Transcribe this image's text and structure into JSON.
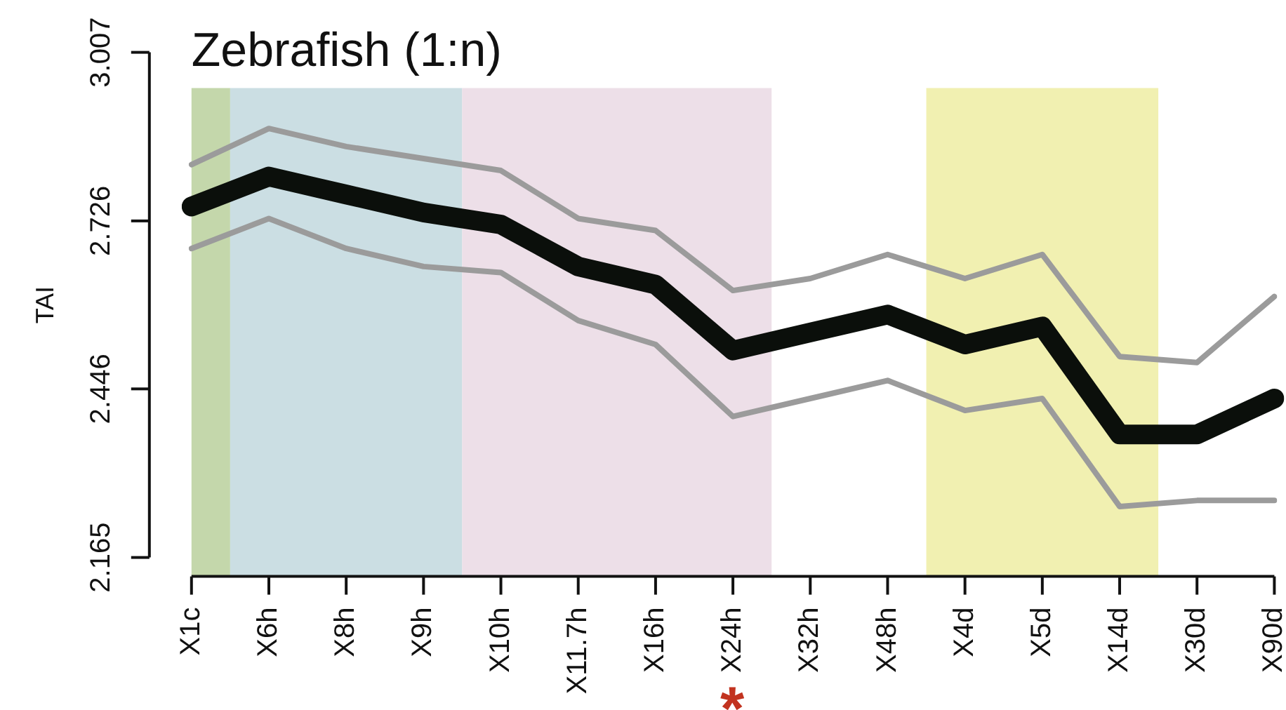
{
  "chart_data": {
    "type": "line",
    "title": "Zebrafish (1:n)",
    "ylabel": "TAI",
    "categories": [
      "X1c",
      "X6h",
      "X8h",
      "X9h",
      "X10h",
      "X11.7h",
      "X16h",
      "X24h",
      "X32h",
      "X48h",
      "X4d",
      "X5d",
      "X14d",
      "X30d",
      "X90d"
    ],
    "series": [
      {
        "color": "#0b0f0b",
        "values": [
          2.75,
          2.8,
          2.77,
          2.74,
          2.72,
          2.65,
          2.62,
          2.51,
          2.54,
          2.57,
          2.52,
          2.55,
          2.37,
          2.37,
          2.43
        ]
      },
      {
        "color": "#9b9b9b",
        "values": [
          2.82,
          2.88,
          2.85,
          2.83,
          2.81,
          2.73,
          2.71,
          2.61,
          2.63,
          2.67,
          2.63,
          2.67,
          2.5,
          2.49,
          2.6
        ]
      },
      {
        "color": "#9b9b9b",
        "values": [
          2.68,
          2.73,
          2.68,
          2.65,
          2.64,
          2.56,
          2.52,
          2.4,
          2.43,
          2.46,
          2.41,
          2.43,
          2.25,
          2.26,
          2.26
        ]
      }
    ],
    "ylim": [
      2.165,
      3.007
    ],
    "yticks": [
      2.165,
      2.446,
      2.726,
      3.007
    ],
    "bands": [
      {
        "axis": "x",
        "from": "X1c",
        "to": "X1c",
        "color": "#c4d7ab"
      },
      {
        "axis": "x",
        "from": "X6h",
        "to": "X9h",
        "color": "#cbdee3"
      },
      {
        "axis": "x",
        "from": "X10h",
        "to": "X24h",
        "color": "#eddfe8"
      },
      {
        "axis": "x",
        "from": "X4d",
        "to": "X14d",
        "color": "#f1f0b1"
      }
    ],
    "annotations": [
      "*"
    ]
  }
}
